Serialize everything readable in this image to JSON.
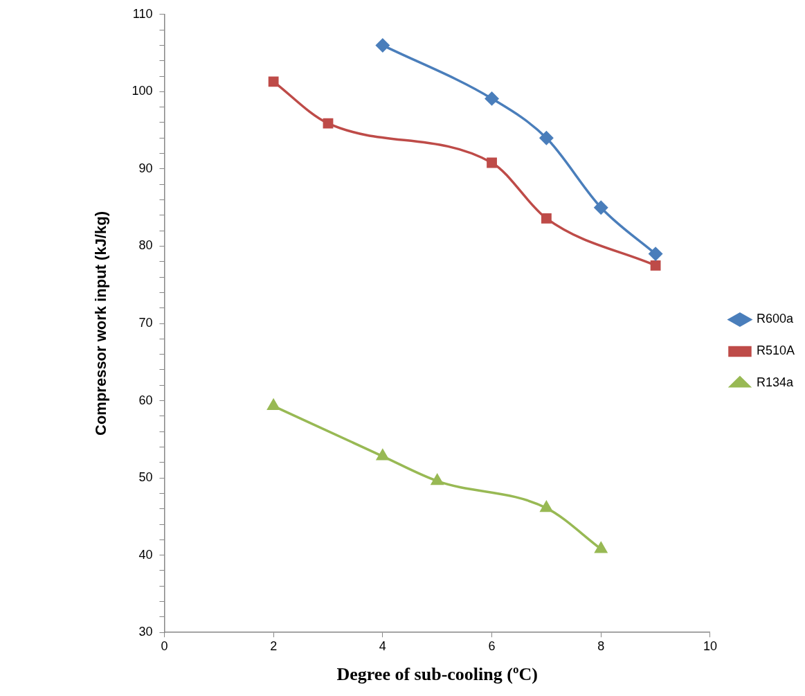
{
  "chart_data": {
    "type": "line",
    "xlabel": "Degree of sub-cooling (ºC)",
    "ylabel": "Compressor work input (kJ/kg)",
    "xlim": [
      0,
      10
    ],
    "xticks": [
      0,
      2,
      4,
      6,
      8,
      10
    ],
    "ylim": [
      30,
      110
    ],
    "yticks": [
      30,
      {
        "value": 32,
        "label": null
      },
      {
        "value": 34,
        "label": null
      },
      {
        "value": 36,
        "label": null
      },
      {
        "value": 38,
        "label": null
      },
      40,
      {
        "value": 42,
        "label": null
      },
      {
        "value": 44,
        "label": null
      },
      {
        "value": 46,
        "label": null
      },
      {
        "value": 48,
        "label": null
      },
      50,
      {
        "value": 52,
        "label": null
      },
      {
        "value": 54,
        "label": null
      },
      {
        "value": 56,
        "label": null
      },
      {
        "value": 58,
        "label": null
      },
      60,
      {
        "value": 62,
        "label": null
      },
      {
        "value": 64,
        "label": null
      },
      {
        "value": 66,
        "label": null
      },
      {
        "value": 68,
        "label": null
      },
      70,
      {
        "value": 72,
        "label": null
      },
      {
        "value": 74,
        "label": null
      },
      {
        "value": 76,
        "label": null
      },
      {
        "value": 78,
        "label": null
      },
      80,
      {
        "value": 82,
        "label": null
      },
      {
        "value": 84,
        "label": null
      },
      {
        "value": 86,
        "label": null
      },
      {
        "value": 88,
        "label": null
      },
      90,
      {
        "value": 92,
        "label": null
      },
      {
        "value": 94,
        "label": null
      },
      {
        "value": 96,
        "label": null
      },
      {
        "value": 98,
        "label": null
      },
      100,
      {
        "value": 102,
        "label": null
      },
      {
        "value": 104,
        "label": null
      },
      {
        "value": 106,
        "label": null
      },
      {
        "value": 108,
        "label": null
      },
      110
    ],
    "grid": false,
    "legend": "right",
    "line_style": "solid",
    "series": [
      {
        "name": "R600a",
        "color": "#4a7ebb",
        "marker": "diamond",
        "x": [
          4,
          6,
          7,
          8,
          9
        ],
        "values": [
          106.0,
          99.1,
          94.0,
          85.0,
          79.0
        ]
      },
      {
        "name": "R510A",
        "color": "#be4b48",
        "marker": "square",
        "x": [
          2,
          3,
          6,
          7,
          9
        ],
        "values": [
          101.3,
          95.9,
          90.8,
          83.6,
          77.5
        ]
      },
      {
        "name": "R134a",
        "color": "#98b954",
        "marker": "triangle",
        "x": [
          2,
          4,
          5,
          7,
          8
        ],
        "values": [
          59.3,
          52.8,
          49.6,
          46.1,
          40.8
        ]
      }
    ]
  }
}
